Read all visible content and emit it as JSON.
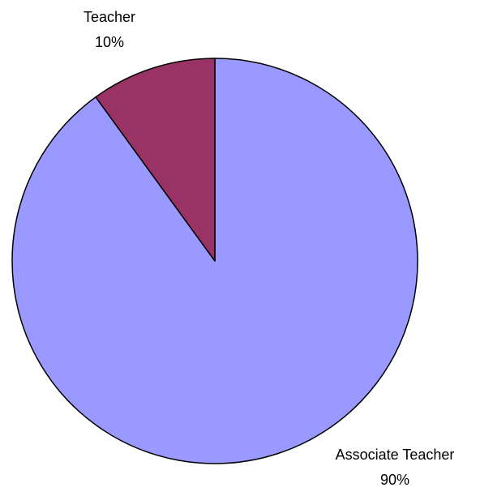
{
  "chart_data": {
    "type": "pie",
    "categories": [
      "Associate Teacher",
      "Teacher"
    ],
    "values": [
      90,
      10
    ],
    "value_labels": [
      "90%",
      "10%"
    ],
    "colors": [
      "#9999ff",
      "#993366"
    ]
  }
}
